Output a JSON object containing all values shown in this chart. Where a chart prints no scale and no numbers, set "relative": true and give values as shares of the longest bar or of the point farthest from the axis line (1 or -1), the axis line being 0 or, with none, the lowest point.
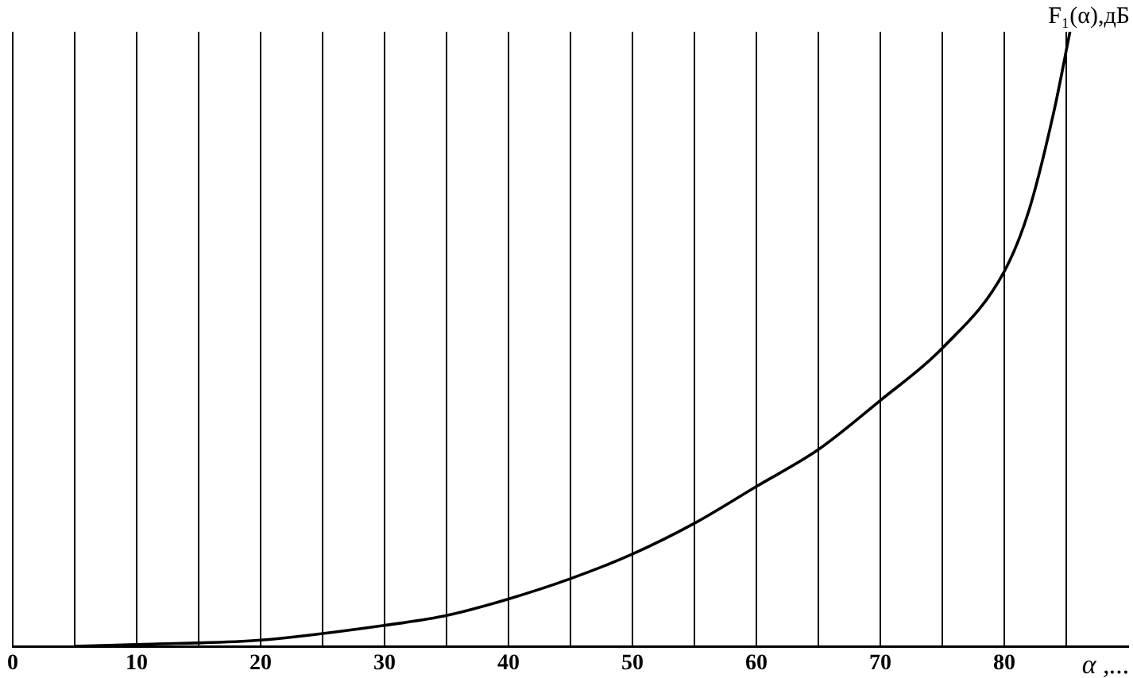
{
  "chart_data": {
    "type": "line",
    "relative": true,
    "xlabel": "α ,...",
    "ylabel": "F₁(α),дБ",
    "xlim": [
      0,
      90
    ],
    "xticks": [
      0,
      {
        "value": 5,
        "label": null
      },
      10,
      {
        "value": 15,
        "label": null
      },
      20,
      {
        "value": 25,
        "label": null
      },
      30,
      {
        "value": 35,
        "label": null
      },
      40,
      {
        "value": 45,
        "label": null
      },
      50,
      {
        "value": 55,
        "label": null
      },
      60,
      {
        "value": 65,
        "label": null
      },
      70,
      {
        "value": 75,
        "label": null
      },
      80,
      {
        "value": 85,
        "label": null
      }
    ],
    "grid": "x",
    "marker": "none",
    "line_style": "solid",
    "series": [
      {
        "color": "#000000",
        "x": [
          5,
          10,
          20,
          30,
          35,
          40,
          45,
          50,
          55,
          60,
          65,
          70,
          75,
          80,
          82,
          84,
          85.3
        ],
        "values": [
          0,
          0.003,
          0.01,
          0.034,
          0.05,
          0.077,
          0.11,
          0.15,
          0.2,
          0.26,
          0.32,
          0.4,
          0.485,
          0.61,
          0.71,
          0.87,
          1
        ]
      }
    ]
  }
}
